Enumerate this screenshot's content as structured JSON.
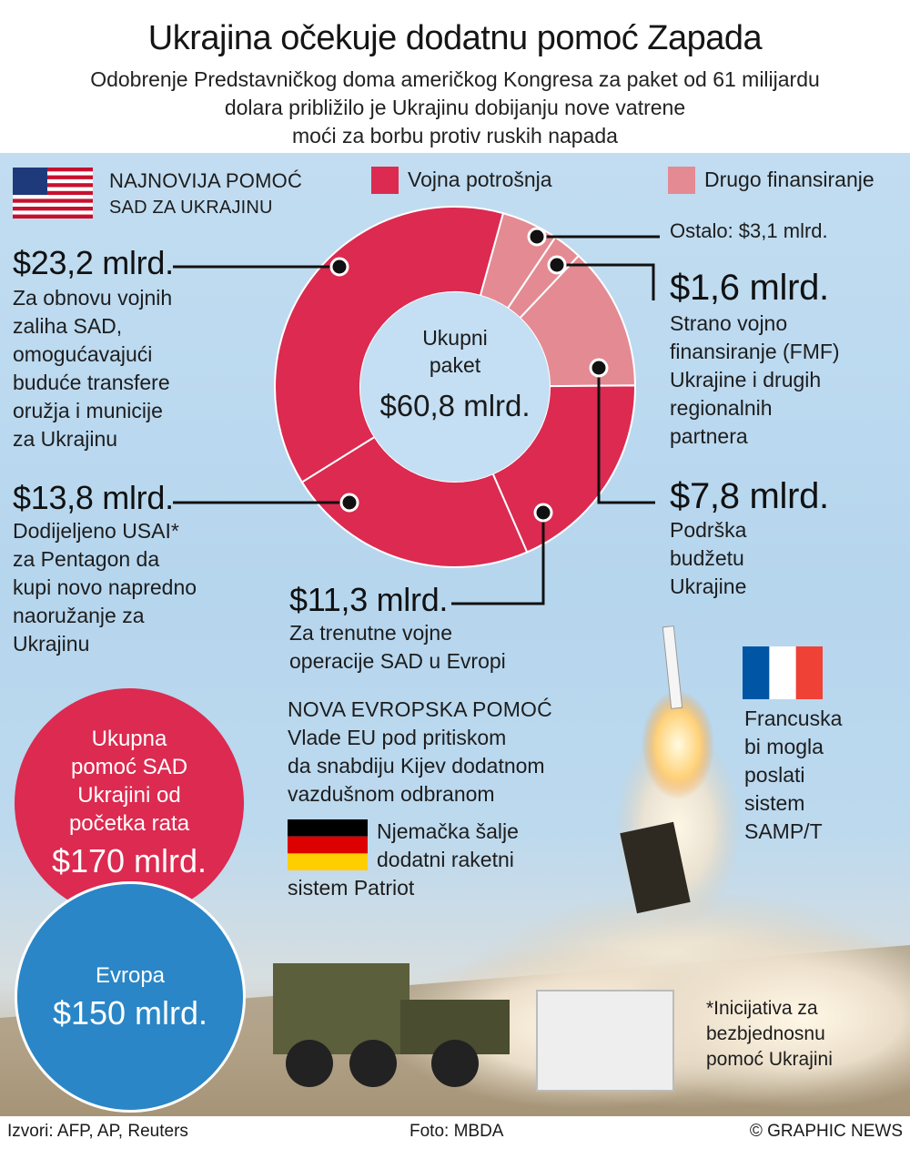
{
  "header": {
    "title": "Ukrajina očekuje dodatnu pomoć Zapada",
    "subtitle_lines": [
      "Odobrenje Predstavničkog doma američkog Kongresa za paket od 61 milijardu",
      "dolara približilo je Ukrajinu dobijanju nove vatrene",
      "moći za borbu protiv ruskih napada"
    ]
  },
  "legend": {
    "heading_line1": "NAJNOVIJA POMOĆ",
    "heading_line2": "SAD ZA UKRAJINU",
    "military_label": "Vojna potrošnja",
    "other_label": "Drugo finansiranje"
  },
  "colors": {
    "military": "#dc2a50",
    "other": "#e48a93",
    "europe": "#2a86c6",
    "us_total": "#dc2a50"
  },
  "chart_data": {
    "type": "pie",
    "donut": true,
    "center": {
      "line1": "Ukupni",
      "line2": "paket",
      "value": "$60,8 mlrd."
    },
    "slices": [
      {
        "name": "Ostalo",
        "value": 3.1,
        "category": "other",
        "value_label": "Ostalo: $3,1 mlrd.",
        "description_lines": []
      },
      {
        "name": "FMF",
        "value": 1.6,
        "category": "other",
        "value_label": "$1,6 mlrd.",
        "description_lines": [
          "Strano vojno",
          "finansiranje (FMF)",
          "Ukrajine i drugih",
          "regionalnih",
          "partnera"
        ]
      },
      {
        "name": "Podrška budžetu",
        "value": 7.8,
        "category": "other",
        "value_label": "$7,8 mlrd.",
        "description_lines": [
          "Podrška",
          "budžetu",
          "Ukrajine"
        ]
      },
      {
        "name": "Evropa operacije",
        "value": 11.3,
        "category": "military",
        "value_label": "$11,3 mlrd.",
        "description_lines": [
          "Za trenutne vojne",
          "operacije SAD u Evropi"
        ]
      },
      {
        "name": "USAI",
        "value": 13.8,
        "category": "military",
        "value_label": "$13,8 mlrd.",
        "description_lines": [
          "Dodijeljeno USAI*",
          "za Pentagon da",
          "kupi novo napredno",
          "naoružanje za",
          "Ukrajinu"
        ]
      },
      {
        "name": "Zalihe SAD",
        "value": 23.2,
        "category": "military",
        "value_label": "$23,2 mlrd.",
        "description_lines": [
          "Za obnovu vojnih",
          "zaliha SAD,",
          "omogućavajući",
          "buduće transfere",
          "oružja i municije",
          "za Ukrajinu"
        ]
      }
    ]
  },
  "totals": {
    "us": {
      "lines": [
        "Ukupna",
        "pomoć SAD",
        "Ukrajini od",
        "početka rata"
      ],
      "value": "$170 mlrd."
    },
    "europe": {
      "label": "Evropa",
      "value": "$150 mlrd."
    }
  },
  "europe_aid": {
    "heading": "NOVA EVROPSKA POMOĆ",
    "lines": [
      "Vlade EU pod pritiskom",
      "da snabdiju Kijev dodatnom",
      "vazdušnom odbranom"
    ],
    "germany_lines": [
      "Njemačka šalje",
      "dodatni raketni",
      "sistem Patriot"
    ],
    "france_lines": [
      "Francuska",
      "bi mogla",
      "poslati",
      "sistem",
      "SAMP/T"
    ]
  },
  "footnote_lines": [
    "*Inicijativa za",
    "bezbjednosnu",
    "pomoć Ukrajini"
  ],
  "footer": {
    "sources": "Izvori: AFP, AP, Reuters",
    "photo": "Foto: MBDA",
    "copyright": "© GRAPHIC NEWS"
  },
  "icons": {
    "us_flag": "us-flag-icon",
    "de_flag": "germany-flag-icon",
    "fr_flag": "france-flag-icon"
  }
}
